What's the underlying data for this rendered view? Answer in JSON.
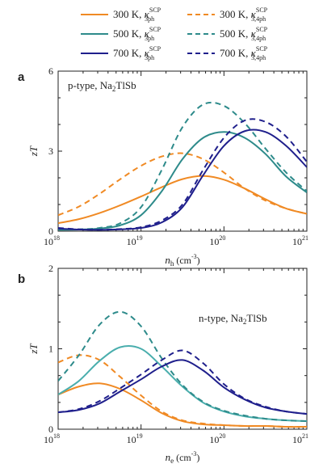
{
  "colors": {
    "300 K": "#f08a24",
    "500 K": "#2e8b8b",
    "700 K": "#1f1f8c",
    "500 K light": "#4aaead"
  },
  "legend": {
    "items": [
      {
        "temp": "300 K",
        "kappa": "κ",
        "sup": "SCP",
        "sub": "3ph",
        "style": "solid"
      },
      {
        "temp": "300 K",
        "kappa": "κ",
        "sup": "SCP",
        "sub": "3,4ph",
        "style": "dashed"
      },
      {
        "temp": "500 K",
        "kappa": "κ",
        "sup": "SCP",
        "sub": "3ph",
        "style": "solid"
      },
      {
        "temp": "500 K",
        "kappa": "κ",
        "sup": "SCP",
        "sub": "3,4ph",
        "style": "dashed"
      },
      {
        "temp": "700 K",
        "kappa": "κ",
        "sup": "SCP",
        "sub": "3ph",
        "style": "solid"
      },
      {
        "temp": "700 K",
        "kappa": "κ",
        "sup": "SCP",
        "sub": "3,4ph",
        "style": "dashed"
      }
    ]
  },
  "chart_data": [
    {
      "type": "line",
      "panel_label": "a",
      "annotation": {
        "text": "p-type, Na",
        "sub": "2",
        "rest": "TlSb"
      },
      "ylabel": "zT",
      "xlabel": {
        "main": "n",
        "sub": "h",
        "unit": "(cm",
        "exp": "-3",
        "close": ")"
      },
      "xscale": "log",
      "xlim": [
        1e+18,
        1e+21
      ],
      "ylim": [
        0,
        6
      ],
      "yticks": [
        "0",
        "3",
        "6"
      ],
      "xticks": [
        {
          "base": "10",
          "exp": "18"
        },
        {
          "base": "10",
          "exp": "19"
        },
        {
          "base": "10",
          "exp": "20"
        },
        {
          "base": "10",
          "exp": "21"
        }
      ],
      "x": [
        1e+18,
        1.78e+18,
        3.16e+18,
        5.62e+18,
        1e+19,
        1.78e+19,
        3.16e+19,
        5.62e+19,
        1e+20,
        1.78e+20,
        3.16e+20,
        5.62e+20,
        1e+21
      ],
      "series": [
        {
          "name": "300 K, κ3ph",
          "color": "300 K",
          "style": "solid",
          "values": [
            0.3,
            0.45,
            0.68,
            0.97,
            1.3,
            1.65,
            1.95,
            2.07,
            1.93,
            1.6,
            1.2,
            0.85,
            0.65
          ]
        },
        {
          "name": "300 K, κ3,4ph",
          "color": "300 K",
          "style": "dashed",
          "values": [
            0.6,
            0.92,
            1.4,
            1.95,
            2.45,
            2.8,
            2.92,
            2.7,
            2.2,
            1.6,
            1.15,
            0.85,
            0.65
          ]
        },
        {
          "name": "500 K, κ3ph",
          "color": "500 K",
          "style": "solid",
          "values": [
            0.05,
            0.06,
            0.1,
            0.22,
            0.6,
            1.5,
            2.7,
            3.5,
            3.72,
            3.5,
            2.9,
            2.05,
            1.45
          ]
        },
        {
          "name": "500 K, κ3,4ph",
          "color": "500 K",
          "style": "dashed",
          "values": [
            0.06,
            0.07,
            0.12,
            0.3,
            0.9,
            2.3,
            3.9,
            4.75,
            4.7,
            4.05,
            3.1,
            2.2,
            1.5
          ]
        },
        {
          "name": "700 K, κ3ph",
          "color": "700 K",
          "style": "solid",
          "values": [
            0.1,
            0.06,
            0.05,
            0.07,
            0.12,
            0.33,
            0.9,
            2.1,
            3.2,
            3.75,
            3.72,
            3.2,
            2.4
          ]
        },
        {
          "name": "700 K, κ3,4ph",
          "color": "700 K",
          "style": "dashed",
          "values": [
            0.12,
            0.07,
            0.05,
            0.08,
            0.15,
            0.4,
            1.0,
            2.3,
            3.5,
            4.15,
            4.1,
            3.55,
            2.6
          ]
        }
      ]
    },
    {
      "type": "line",
      "panel_label": "b",
      "annotation": {
        "text": "n-type, Na",
        "sub": "2",
        "rest": "TlSb"
      },
      "ylabel": "zT",
      "xlabel": {
        "main": "n",
        "sub": "e",
        "unit": "(cm",
        "exp": "-3",
        "close": ")"
      },
      "xscale": "log",
      "xlim": [
        1e+18,
        1e+21
      ],
      "ylim": [
        0,
        2
      ],
      "yticks": [
        "0",
        "1",
        "2"
      ],
      "xticks": [
        {
          "base": "10",
          "exp": "18"
        },
        {
          "base": "10",
          "exp": "19"
        },
        {
          "base": "10",
          "exp": "20"
        },
        {
          "base": "10",
          "exp": "21"
        }
      ],
      "x": [
        1e+18,
        1.78e+18,
        3.16e+18,
        5.62e+18,
        1e+19,
        1.78e+19,
        3.16e+19,
        5.62e+19,
        1e+20,
        1.78e+20,
        3.16e+20,
        5.62e+20,
        1e+21
      ],
      "series": [
        {
          "name": "300 K, κ3ph",
          "color": "300 K",
          "style": "solid",
          "values": [
            0.43,
            0.53,
            0.57,
            0.5,
            0.36,
            0.2,
            0.1,
            0.06,
            0.05,
            0.04,
            0.04,
            0.03,
            0.03
          ]
        },
        {
          "name": "300 K, κ3,4ph",
          "color": "300 K",
          "style": "dashed",
          "values": [
            0.83,
            0.92,
            0.86,
            0.65,
            0.42,
            0.22,
            0.11,
            0.07,
            0.05,
            0.04,
            0.04,
            0.03,
            0.03
          ]
        },
        {
          "name": "500 K, κ3ph",
          "color": "500 K light",
          "style": "solid",
          "values": [
            0.43,
            0.6,
            0.85,
            1.02,
            1.0,
            0.78,
            0.53,
            0.33,
            0.22,
            0.16,
            0.13,
            0.11,
            0.1
          ]
        },
        {
          "name": "500 K, κ3,4ph",
          "color": "500 K",
          "style": "dashed",
          "values": [
            0.6,
            0.92,
            1.3,
            1.46,
            1.28,
            0.88,
            0.55,
            0.34,
            0.23,
            0.17,
            0.13,
            0.11,
            0.1
          ]
        },
        {
          "name": "700 K, κ3ph",
          "color": "700 K",
          "style": "solid",
          "values": [
            0.21,
            0.24,
            0.32,
            0.47,
            0.62,
            0.78,
            0.86,
            0.73,
            0.52,
            0.37,
            0.27,
            0.22,
            0.19
          ]
        },
        {
          "name": "700 K, κ3,4ph",
          "color": "700 K",
          "style": "dashed",
          "values": [
            0.21,
            0.25,
            0.35,
            0.51,
            0.68,
            0.86,
            0.98,
            0.82,
            0.56,
            0.38,
            0.28,
            0.22,
            0.19
          ]
        }
      ]
    }
  ]
}
